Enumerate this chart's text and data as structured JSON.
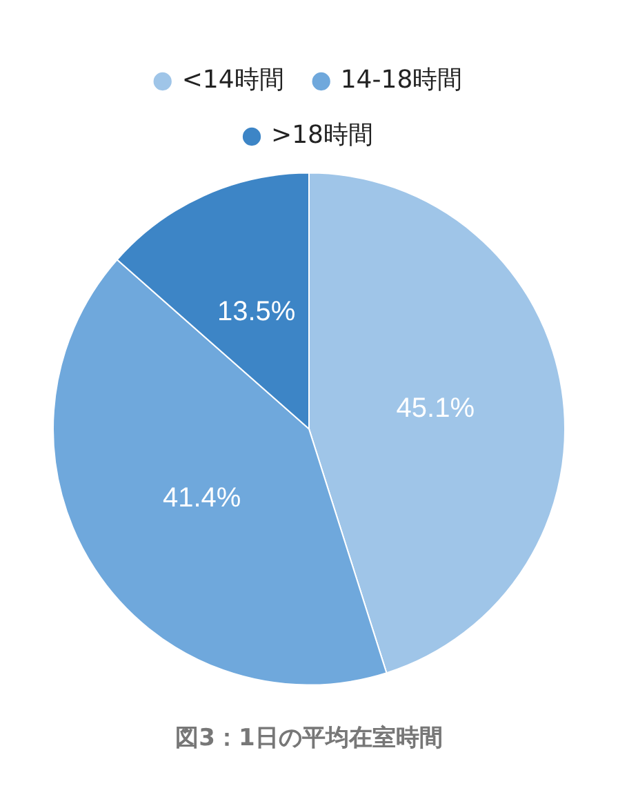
{
  "chart_data": {
    "type": "pie",
    "title": "図3：1日の平均在室時間",
    "categories": [
      "<14時間",
      "14-18時間",
      ">18時間"
    ],
    "values": [
      45.1,
      41.4,
      13.5
    ],
    "colors": [
      "#9fc5e8",
      "#6fa8dc",
      "#3d85c6"
    ],
    "value_labels": [
      "45.1%",
      "41.4%",
      "13.5%"
    ],
    "legend": "top"
  }
}
